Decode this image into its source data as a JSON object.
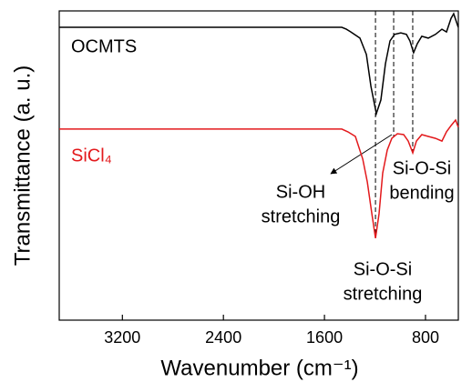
{
  "chart_data": {
    "type": "line",
    "x_label": "Wavenumber (cm⁻¹)",
    "y_label": "Transmittance (a. u.)",
    "xlim": [
      3700,
      540
    ],
    "ylim": [
      0,
      100
    ],
    "xticks": [
      3200,
      2400,
      1600,
      800
    ],
    "series": [
      {
        "name": "OCMTS",
        "color": "#000000",
        "x": [
          3700,
          1463,
          1427,
          1391,
          1319,
          1268,
          1232,
          1189,
          1153,
          1117,
          1081,
          1045,
          995,
          951,
          923,
          894,
          865,
          829,
          778,
          721,
          670,
          634,
          598,
          577,
          541
        ],
        "values": [
          94.7,
          94.7,
          94.1,
          93.2,
          91.2,
          85.9,
          75.6,
          66.8,
          71.2,
          82.9,
          90.3,
          92.4,
          92.9,
          92.4,
          90.3,
          86.5,
          89.4,
          91.8,
          91.2,
          92.4,
          94.1,
          93.2,
          97.6,
          99.1,
          94.7
        ]
      },
      {
        "name": "SiCl₄",
        "color": "#e3191c",
        "x": [
          3700,
          1463,
          1415,
          1355,
          1297,
          1261,
          1225,
          1196,
          1168,
          1139,
          1103,
          1067,
          1023,
          973,
          937,
          901,
          872,
          829,
          778,
          721,
          670,
          634,
          598,
          562,
          541
        ],
        "values": [
          61.8,
          61.8,
          60.9,
          59.4,
          52.1,
          44.7,
          34.4,
          26.5,
          34.4,
          47.6,
          55.0,
          58.8,
          60.3,
          60.0,
          57.9,
          54.1,
          57.9,
          60.0,
          59.4,
          58.8,
          57.9,
          60.9,
          62.9,
          64.7,
          62.4
        ]
      }
    ],
    "markers": [
      1196,
      1052,
      901
    ],
    "annotations": [
      {
        "lines": [
          "Si-OH",
          "stretching"
        ]
      },
      {
        "lines": [
          "Si-O-Si",
          "bending"
        ]
      },
      {
        "lines": [
          "Si-O-Si",
          "stretching"
        ]
      }
    ]
  }
}
